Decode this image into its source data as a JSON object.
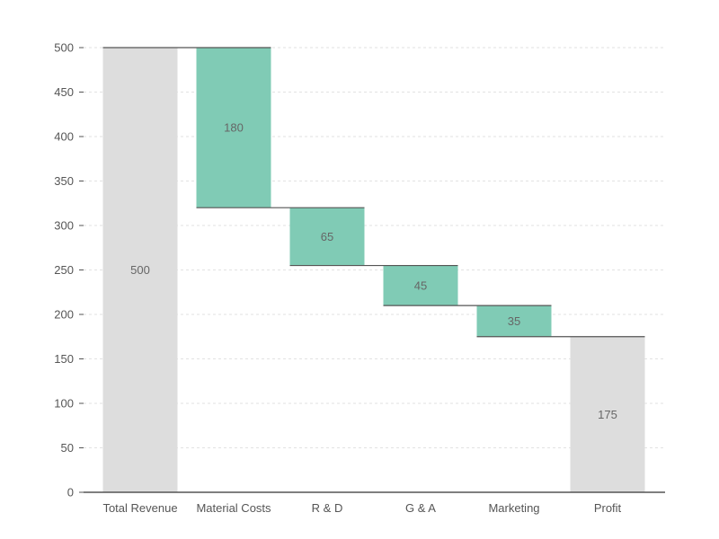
{
  "chart_data": {
    "type": "waterfall",
    "title": "",
    "xlabel": "",
    "ylabel": "",
    "ylim": [
      0,
      500
    ],
    "yticks": [
      0,
      50,
      100,
      150,
      200,
      250,
      300,
      350,
      400,
      450,
      500
    ],
    "grid": true,
    "categories": [
      "Total Revenue",
      "Material Costs",
      "R & D",
      "G & A",
      "Marketing",
      "Profit"
    ],
    "bars": [
      {
        "category": "Total Revenue",
        "kind": "total",
        "start": 0,
        "end": 500,
        "label": "500"
      },
      {
        "category": "Material Costs",
        "kind": "decrease",
        "start": 500,
        "end": 320,
        "label": "180"
      },
      {
        "category": "R & D",
        "kind": "decrease",
        "start": 320,
        "end": 255,
        "label": "65"
      },
      {
        "category": "G & A",
        "kind": "decrease",
        "start": 255,
        "end": 210,
        "label": "45"
      },
      {
        "category": "Marketing",
        "kind": "decrease",
        "start": 210,
        "end": 175,
        "label": "35"
      },
      {
        "category": "Profit",
        "kind": "total",
        "start": 0,
        "end": 175,
        "label": "175"
      }
    ],
    "colors": {
      "total": "#dddddd",
      "decrease": "#80cbb5",
      "axis": "#555555",
      "grid": "#e2e2e2",
      "connector": "#555555"
    }
  }
}
